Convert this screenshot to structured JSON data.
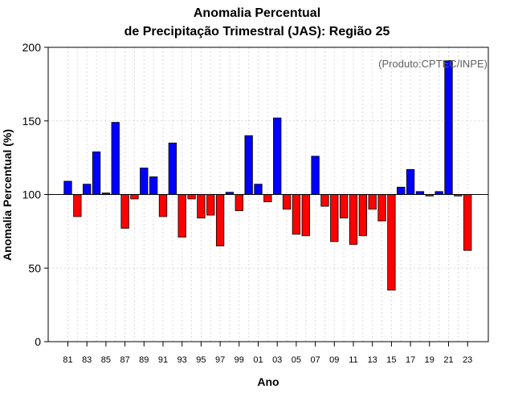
{
  "chart_data": {
    "type": "bar",
    "title": "Anomalia Percentual",
    "subtitle": "de Precipitação Trimestral (JAS): Região 25",
    "xlabel": "Ano",
    "ylabel": "Anomalia Percentual (%)",
    "annotation": "(Produto:CPTEC/INPE)",
    "ylim": [
      0,
      200
    ],
    "yticks": [
      0,
      50,
      100,
      150,
      200
    ],
    "baseline": 100,
    "grid": true,
    "xtick_labels": [
      "81",
      "83",
      "85",
      "87",
      "89",
      "91",
      "93",
      "95",
      "97",
      "99",
      "01",
      "03",
      "05",
      "07",
      "09",
      "11",
      "13",
      "15",
      "17",
      "19",
      "21",
      "23"
    ],
    "categories": [
      "1981",
      "1982",
      "1983",
      "1984",
      "1985",
      "1986",
      "1987",
      "1988",
      "1989",
      "1990",
      "1991",
      "1992",
      "1993",
      "1994",
      "1995",
      "1996",
      "1997",
      "1998",
      "1999",
      "2000",
      "2001",
      "2002",
      "2003",
      "2004",
      "2005",
      "2006",
      "2007",
      "2008",
      "2009",
      "2010",
      "2011",
      "2012",
      "2013",
      "2014",
      "2015",
      "2016",
      "2017",
      "2018",
      "2019",
      "2020",
      "2021",
      "2022",
      "2023"
    ],
    "values": [
      109,
      85,
      107,
      129,
      101,
      149,
      77,
      97,
      118,
      112,
      85,
      135,
      71,
      97,
      84,
      86,
      65,
      101.5,
      89,
      140,
      107,
      95,
      152,
      90,
      73,
      72,
      126,
      92,
      68,
      84,
      66,
      72,
      90,
      82,
      35,
      105,
      117,
      102,
      99,
      102,
      191,
      99,
      62
    ],
    "colors": {
      "above": "#0000ff",
      "below": "#ff0000",
      "outline": "#000000",
      "grid": "#d9d9d9"
    }
  }
}
